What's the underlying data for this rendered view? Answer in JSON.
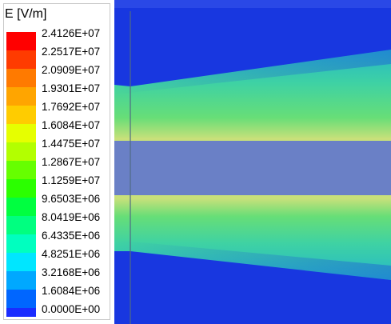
{
  "legend": {
    "title": "E [V/m]",
    "colors": [
      "#ff0000",
      "#ff3b00",
      "#ff7a00",
      "#ffa500",
      "#ffcc00",
      "#e6ff00",
      "#b3ff00",
      "#66ff00",
      "#2bff00",
      "#00ff40",
      "#00ff80",
      "#00ffbf",
      "#00e6ff",
      "#00a8ff",
      "#0066ff",
      "#1a2cff",
      "#0000ff"
    ],
    "values": [
      "2.4126E+07",
      "2.2517E+07",
      "2.0909E+07",
      "1.9301E+07",
      "1.7692E+07",
      "1.6084E+07",
      "1.4475E+07",
      "1.2867E+07",
      "1.1259E+07",
      "9.6503E+06",
      "8.0419E+06",
      "6.4335E+06",
      "4.8251E+06",
      "3.2168E+06",
      "1.6084E+06",
      "0.0000E+00"
    ]
  },
  "field_plot": {
    "background_color": "#1837e0",
    "dielectric_color": "#6a80c6",
    "band_edge_color": "#c8e07a",
    "gradient_colors": [
      "#2bb7c8",
      "#3dd79e",
      "#6fe26d",
      "#b6ea52"
    ]
  }
}
